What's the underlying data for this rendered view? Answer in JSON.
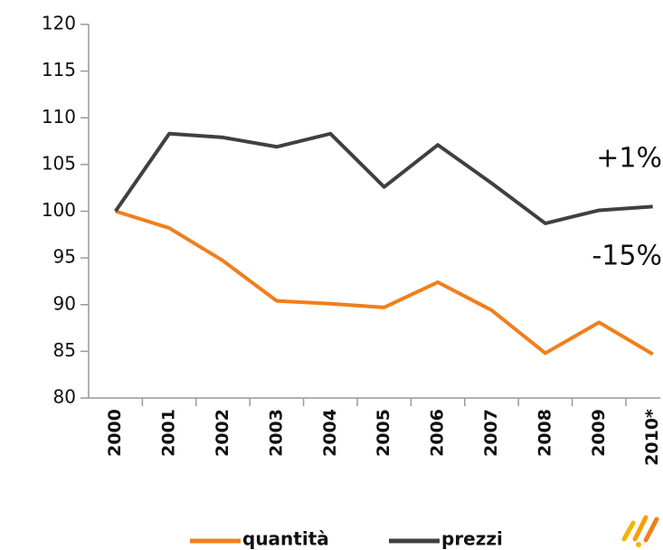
{
  "chart_data": {
    "type": "line",
    "categories": [
      "2000",
      "2001",
      "2002",
      "2003",
      "2004",
      "2005",
      "2006",
      "2007",
      "2008",
      "2009",
      "2010*"
    ],
    "series": [
      {
        "name": "quantità",
        "color": "#f07f1c",
        "values": [
          100,
          98.2,
          94.7,
          90.4,
          90.1,
          89.7,
          92.4,
          89.4,
          84.8,
          88.1,
          84.7
        ]
      },
      {
        "name": "prezzi",
        "color": "#404040",
        "values": [
          100,
          108.3,
          107.9,
          106.9,
          108.3,
          102.6,
          107.1,
          103.0,
          98.7,
          100.1,
          100.5
        ]
      }
    ],
    "annotations": [
      "+1%",
      "-15%"
    ],
    "ylim": [
      80,
      120
    ],
    "yticks": [
      80,
      85,
      90,
      95,
      100,
      105,
      110,
      115,
      120
    ],
    "grid": false,
    "legend": "bottom"
  }
}
